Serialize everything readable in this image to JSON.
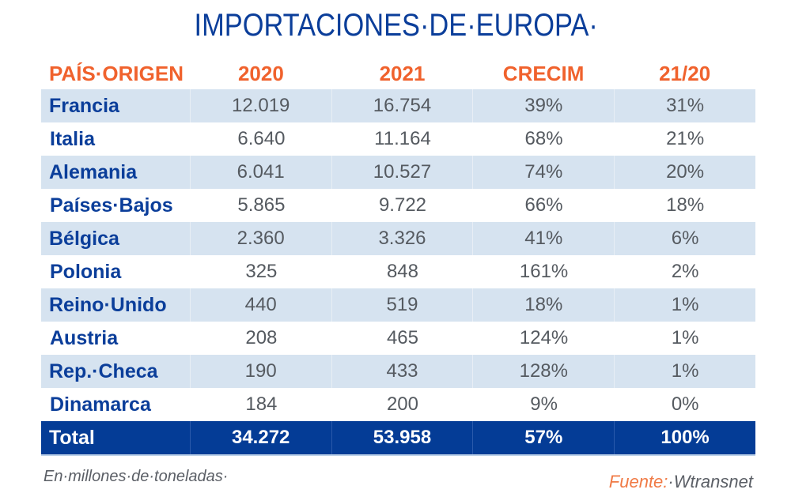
{
  "title": "IMPORTACIONES·DE·EUROPA·",
  "header": {
    "country": "PAÍS·ORIGEN",
    "y2020": "2020",
    "y2021": "2021",
    "growth": "CRECIM",
    "share": "21/20"
  },
  "rows": [
    {
      "country": "Francia",
      "y2020": "12.019",
      "y2021": "16.754",
      "growth": "39%",
      "share": "31%"
    },
    {
      "country": "Italia",
      "y2020": "6.640",
      "y2021": "11.164",
      "growth": "68%",
      "share": "21%"
    },
    {
      "country": "Alemania",
      "y2020": "6.041",
      "y2021": "10.527",
      "growth": "74%",
      "share": "20%"
    },
    {
      "country": "Países·Bajos",
      "y2020": "5.865",
      "y2021": "9.722",
      "growth": "66%",
      "share": "18%"
    },
    {
      "country": "Bélgica",
      "y2020": "2.360",
      "y2021": "3.326",
      "growth": "41%",
      "share": "6%"
    },
    {
      "country": "Polonia",
      "y2020": "325",
      "y2021": "848",
      "growth": "161%",
      "share": "2%"
    },
    {
      "country": "Reino·Unido",
      "y2020": "440",
      "y2021": "519",
      "growth": "18%",
      "share": "1%"
    },
    {
      "country": "Austria",
      "y2020": "208",
      "y2021": "465",
      "growth": "124%",
      "share": "1%"
    },
    {
      "country": "Rep.·Checa",
      "y2020": "190",
      "y2021": "433",
      "growth": "128%",
      "share": "1%"
    },
    {
      "country": "Dinamarca",
      "y2020": "184",
      "y2021": "200",
      "growth": "9%",
      "share": "0%"
    }
  ],
  "total": {
    "country": "Total",
    "y2020": "34.272",
    "y2021": "53.958",
    "growth": "57%",
    "share": "100%"
  },
  "footer": {
    "note": "En·millones·de·toneladas·",
    "source_label": "Fuente:",
    "source_value": "·Wtransnet"
  },
  "colors": {
    "title": "#0b3e9a",
    "header": "#f0622d",
    "stripe": "#d6e3f0",
    "total_bg": "#043c96"
  }
}
